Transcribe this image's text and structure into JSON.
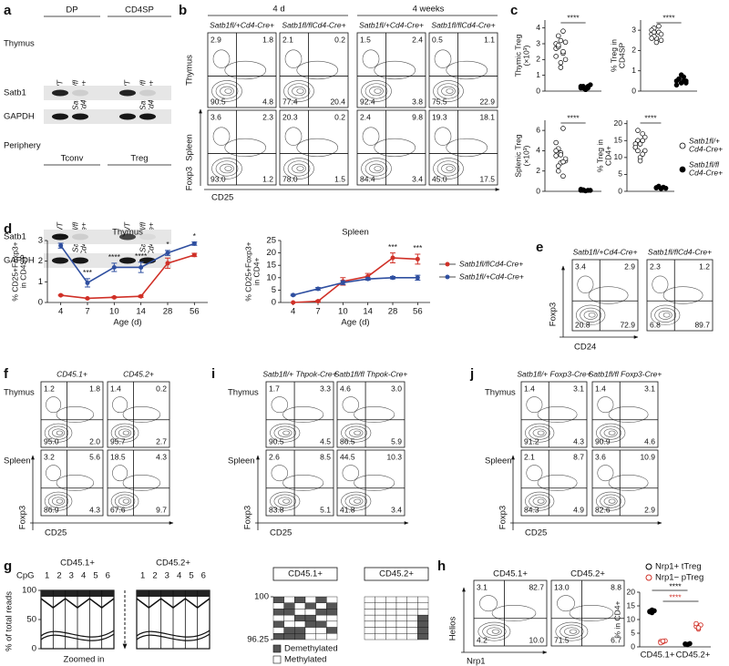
{
  "a": {
    "label": "a",
    "headers_top": [
      "DP",
      "CD4SP"
    ],
    "tissue_top": "Thymus",
    "lanes": [
      "WT",
      "Satb1fl/fl Cd4-Cre+"
    ],
    "bands": [
      "Satb1",
      "GAPDH"
    ],
    "tissue_bottom": "Periphery",
    "headers_bottom": [
      "Tconv",
      "Treg"
    ]
  },
  "b": {
    "label": "b",
    "time_headers": [
      "4 d",
      "4 weeks"
    ],
    "genotypes": [
      "Satb1fl/+Cd4-Cre+",
      "Satb1fl/flCd4-Cre+"
    ],
    "rows": [
      "Thymus",
      "Spleen"
    ],
    "y_axis": "Foxp3",
    "x_axis": "CD25",
    "quadrants": [
      [
        [
          "2.9",
          "1.8",
          "90.5",
          "4.8"
        ],
        [
          "2.1",
          "0.2",
          "77.4",
          "20.4"
        ],
        [
          "1.5",
          "2.4",
          "92.4",
          "3.8"
        ],
        [
          "0.5",
          "1.1",
          "75.5",
          "22.9"
        ]
      ],
      [
        [
          "3.6",
          "2.3",
          "93.0",
          "1.2"
        ],
        [
          "20.3",
          "0.2",
          "78.0",
          "1.5"
        ],
        [
          "2.4",
          "9.8",
          "84.4",
          "3.4"
        ],
        [
          "19.3",
          "18.1",
          "45.0",
          "17.5"
        ]
      ]
    ]
  },
  "c": {
    "label": "c",
    "legend": [
      {
        "name": "Satb1fl/+ Cd4-Cre+",
        "color": "#ffffff"
      },
      {
        "name": "Satb1fl/fl Cd4-Cre+",
        "color": "#000000"
      }
    ],
    "charts": [
      {
        "type": "scatter",
        "ylabel": "Thymic Treg (×10³)",
        "ylim": [
          0,
          4.5
        ],
        "yticks": [
          0,
          1,
          2,
          3,
          4
        ],
        "significance": "****",
        "series": [
          {
            "values": [
              2.7,
              3.5,
              3.2,
              2.4,
              2.0,
              3.0,
              2.8,
              1.8,
              2.5,
              3.1,
              2.2,
              2.9,
              1.5,
              3.8
            ]
          },
          {
            "values": [
              0.2,
              0.3,
              0.1,
              0.2,
              0.4,
              0.3,
              0.2,
              0.1,
              0.3
            ]
          }
        ]
      },
      {
        "type": "scatter",
        "ylabel": "% Treg in CD4SP",
        "ylim": [
          0,
          3.5
        ],
        "yticks": [
          0,
          1,
          2,
          3
        ],
        "significance": "****",
        "series": [
          {
            "values": [
              2.8,
              3.1,
              2.6,
              2.9,
              2.5,
              3.0,
              2.7,
              2.4,
              3.2,
              2.8,
              2.6,
              2.9
            ]
          },
          {
            "values": [
              0.5,
              0.6,
              0.4,
              0.7,
              0.5,
              0.3,
              0.6,
              0.8,
              0.5,
              0.4
            ]
          }
        ]
      },
      {
        "type": "scatter",
        "ylabel": "Splenic Treg (×10³)",
        "ylim": [
          0,
          7
        ],
        "yticks": [
          0,
          2,
          4,
          6
        ],
        "significance": "****",
        "series": [
          {
            "values": [
              3.5,
              4.2,
              2.8,
              6.2,
              3.0,
              4.8,
              2.5,
              3.8,
              1.5,
              3.2,
              4.0,
              2.0,
              3.6,
              2.9
            ]
          },
          {
            "values": [
              0.1,
              0.15,
              0.05,
              0.1,
              0.1,
              0.2,
              0.1
            ]
          }
        ]
      },
      {
        "type": "scatter",
        "ylabel": "% Treg in CD4+",
        "ylim": [
          0,
          21
        ],
        "yticks": [
          0,
          5,
          10,
          15,
          20
        ],
        "significance": "****",
        "series": [
          {
            "values": [
              13,
              15,
              10,
              17,
              12,
              14,
              18,
              9,
              11,
              16,
              13,
              12,
              14,
              15
            ]
          },
          {
            "values": [
              1,
              1.5,
              0.8,
              1.2,
              0.9,
              1.1,
              1.4
            ]
          }
        ]
      }
    ]
  },
  "d": {
    "label": "d",
    "legend": [
      {
        "name": "Satb1fl/flCd4-Cre+",
        "color": "#d03027"
      },
      {
        "name": "Satb1fl/+Cd4-Cre+",
        "color": "#2f4fa0"
      }
    ],
    "charts": [
      {
        "type": "line",
        "title": "Thymus",
        "categories": [
          4,
          7,
          10,
          14,
          28,
          56
        ],
        "ylabel": "% CD25+Foxp3+ in CD4SP",
        "xlabel": "Age (d)",
        "ylim": [
          0,
          3
        ],
        "yticks": [
          0,
          1,
          2,
          3
        ],
        "series": [
          {
            "values": [
              0.35,
              0.2,
              0.25,
              0.3,
              1.9,
              2.3
            ],
            "errors": [
              0.03,
              0.02,
              0.03,
              0.05,
              0.25,
              0.08
            ]
          },
          {
            "values": [
              2.75,
              0.95,
              1.7,
              1.7,
              2.4,
              2.85
            ],
            "errors": [
              0.12,
              0.2,
              0.2,
              0.25,
              0.12,
              0.08
            ]
          }
        ],
        "annotations": [
          "****",
          "***",
          "****",
          "****",
          "*",
          "*"
        ]
      },
      {
        "type": "line",
        "title": "Spleen",
        "categories": [
          4,
          7,
          10,
          14,
          28,
          56
        ],
        "ylabel": "% CD25+Foxp3+ in CD4+",
        "xlabel": "Age (d)",
        "ylim": [
          0,
          25
        ],
        "yticks": [
          0,
          5,
          10,
          15,
          20,
          25
        ],
        "series": [
          {
            "values": [
              0,
              0.5,
              8.5,
              10.5,
              18,
              17.5
            ],
            "errors": [
              0,
              0.3,
              1.5,
              1.2,
              2,
              2
            ]
          },
          {
            "values": [
              3,
              5.5,
              8,
              9.5,
              10,
              10
            ],
            "errors": [
              0.3,
              0.5,
              0.8,
              0.5,
              0.5,
              1
            ]
          }
        ],
        "annotations": [
          null,
          null,
          null,
          null,
          "***",
          "***"
        ]
      }
    ]
  },
  "e": {
    "label": "e",
    "genotypes": [
      "Satb1fl/+Cd4-Cre+",
      "Satb1fl/flCd4-Cre+"
    ],
    "y_axis": "Foxp3",
    "x_axis": "CD24",
    "quadrants": [
      [
        "3.4",
        "2.9",
        "20.8",
        "72.9"
      ],
      [
        "2.3",
        "1.2",
        "6.8",
        "89.7"
      ]
    ]
  },
  "f": {
    "label": "f",
    "headers": [
      "CD45.1+",
      "CD45.2+"
    ],
    "rows": [
      "Thymus",
      "Spleen"
    ],
    "y_axis": "Foxp3",
    "x_axis": "CD25",
    "quadrants": [
      [
        [
          "1.2",
          "1.8",
          "95.0",
          "2.0"
        ],
        [
          "1.4",
          "0.2",
          "95.7",
          "2.7"
        ]
      ],
      [
        [
          "3.2",
          "5.6",
          "86.9",
          "4.3"
        ],
        [
          "18.5",
          "4.3",
          "67.6",
          "9.7"
        ]
      ]
    ]
  },
  "i": {
    "label": "i",
    "headers": [
      "Satb1fl/+ Thpok-Cre+",
      "Satb1fl/fl Thpok-Cre+"
    ],
    "rows": [
      "Thymus",
      "Spleen"
    ],
    "y_axis": "Foxp3",
    "x_axis": "CD25",
    "quadrants": [
      [
        [
          "1.7",
          "3.3",
          "90.5",
          "4.5"
        ],
        [
          "4.6",
          "3.0",
          "86.5",
          "5.9"
        ]
      ],
      [
        [
          "2.6",
          "8.5",
          "83.8",
          "5.1"
        ],
        [
          "44.5",
          "10.3",
          "41.8",
          "3.4"
        ]
      ]
    ]
  },
  "j": {
    "label": "j",
    "headers": [
      "Satb1fl/+ Foxp3-Cre+",
      "Satb1fl/fl Foxp3-Cre+"
    ],
    "rows": [
      "Thymus",
      "Spleen"
    ],
    "y_axis": "Foxp3",
    "x_axis": "CD25",
    "quadrants": [
      [
        [
          "1.4",
          "3.1",
          "91.2",
          "4.3"
        ],
        [
          "1.4",
          "3.1",
          "90.9",
          "4.6"
        ]
      ],
      [
        [
          "2.1",
          "8.7",
          "84.3",
          "4.9"
        ],
        [
          "3.6",
          "10.9",
          "82.6",
          "2.9"
        ]
      ]
    ]
  },
  "g": {
    "label": "g",
    "headers": [
      "CD45.1+",
      "CD45.2+"
    ],
    "cpg_label": "CpG",
    "cpg_numbers": [
      1,
      2,
      3,
      4,
      5,
      6
    ],
    "ylabel": "% of total reads",
    "ylim": [
      0,
      100
    ],
    "yticks": [
      0,
      50,
      100
    ],
    "xlabel": "Zoomed in",
    "zoom_ylim": [
      96.25,
      100
    ],
    "zoom_yticks": [
      96.25,
      100
    ],
    "legend": [
      {
        "name": "Demethylated",
        "color": "#555555"
      },
      {
        "name": "Methylated",
        "color": "#ffffff"
      }
    ]
  },
  "h": {
    "label": "h",
    "flow": {
      "headers": [
        "CD45.1+",
        "CD45.2+"
      ],
      "y_axis": "Helios",
      "x_axis": "Nrp1",
      "quadrants": [
        [
          "3.1",
          "82.7",
          "4.2",
          "10.0"
        ],
        [
          "13.0",
          "8.8",
          "71.5",
          "6.7"
        ]
      ]
    },
    "chart": {
      "type": "scatter",
      "categories": [
        "CD45.1+",
        "CD45.2+"
      ],
      "ylabel": "% in CD4+",
      "ylim": [
        0,
        20
      ],
      "yticks": [
        0,
        5,
        10,
        15,
        20
      ],
      "series": [
        {
          "name": "Nrp1+ tTreg",
          "color": "#000000",
          "values": [
            [
              13,
              12.5,
              13.2,
              12.8,
              13.5
            ],
            [
              1,
              0.8,
              1.2,
              1.1,
              0.9
            ]
          ]
        },
        {
          "name": "Nrp1− pTreg",
          "color": "#d03027",
          "values": [
            [
              2,
              1.8,
              2.2,
              1.5,
              2.1
            ],
            [
              7.5,
              6.5,
              8,
              8.5,
              7
            ]
          ]
        }
      ],
      "significance": [
        {
          "text": "****",
          "color": "#000000"
        },
        {
          "text": "****",
          "color": "#d03027"
        }
      ]
    }
  }
}
